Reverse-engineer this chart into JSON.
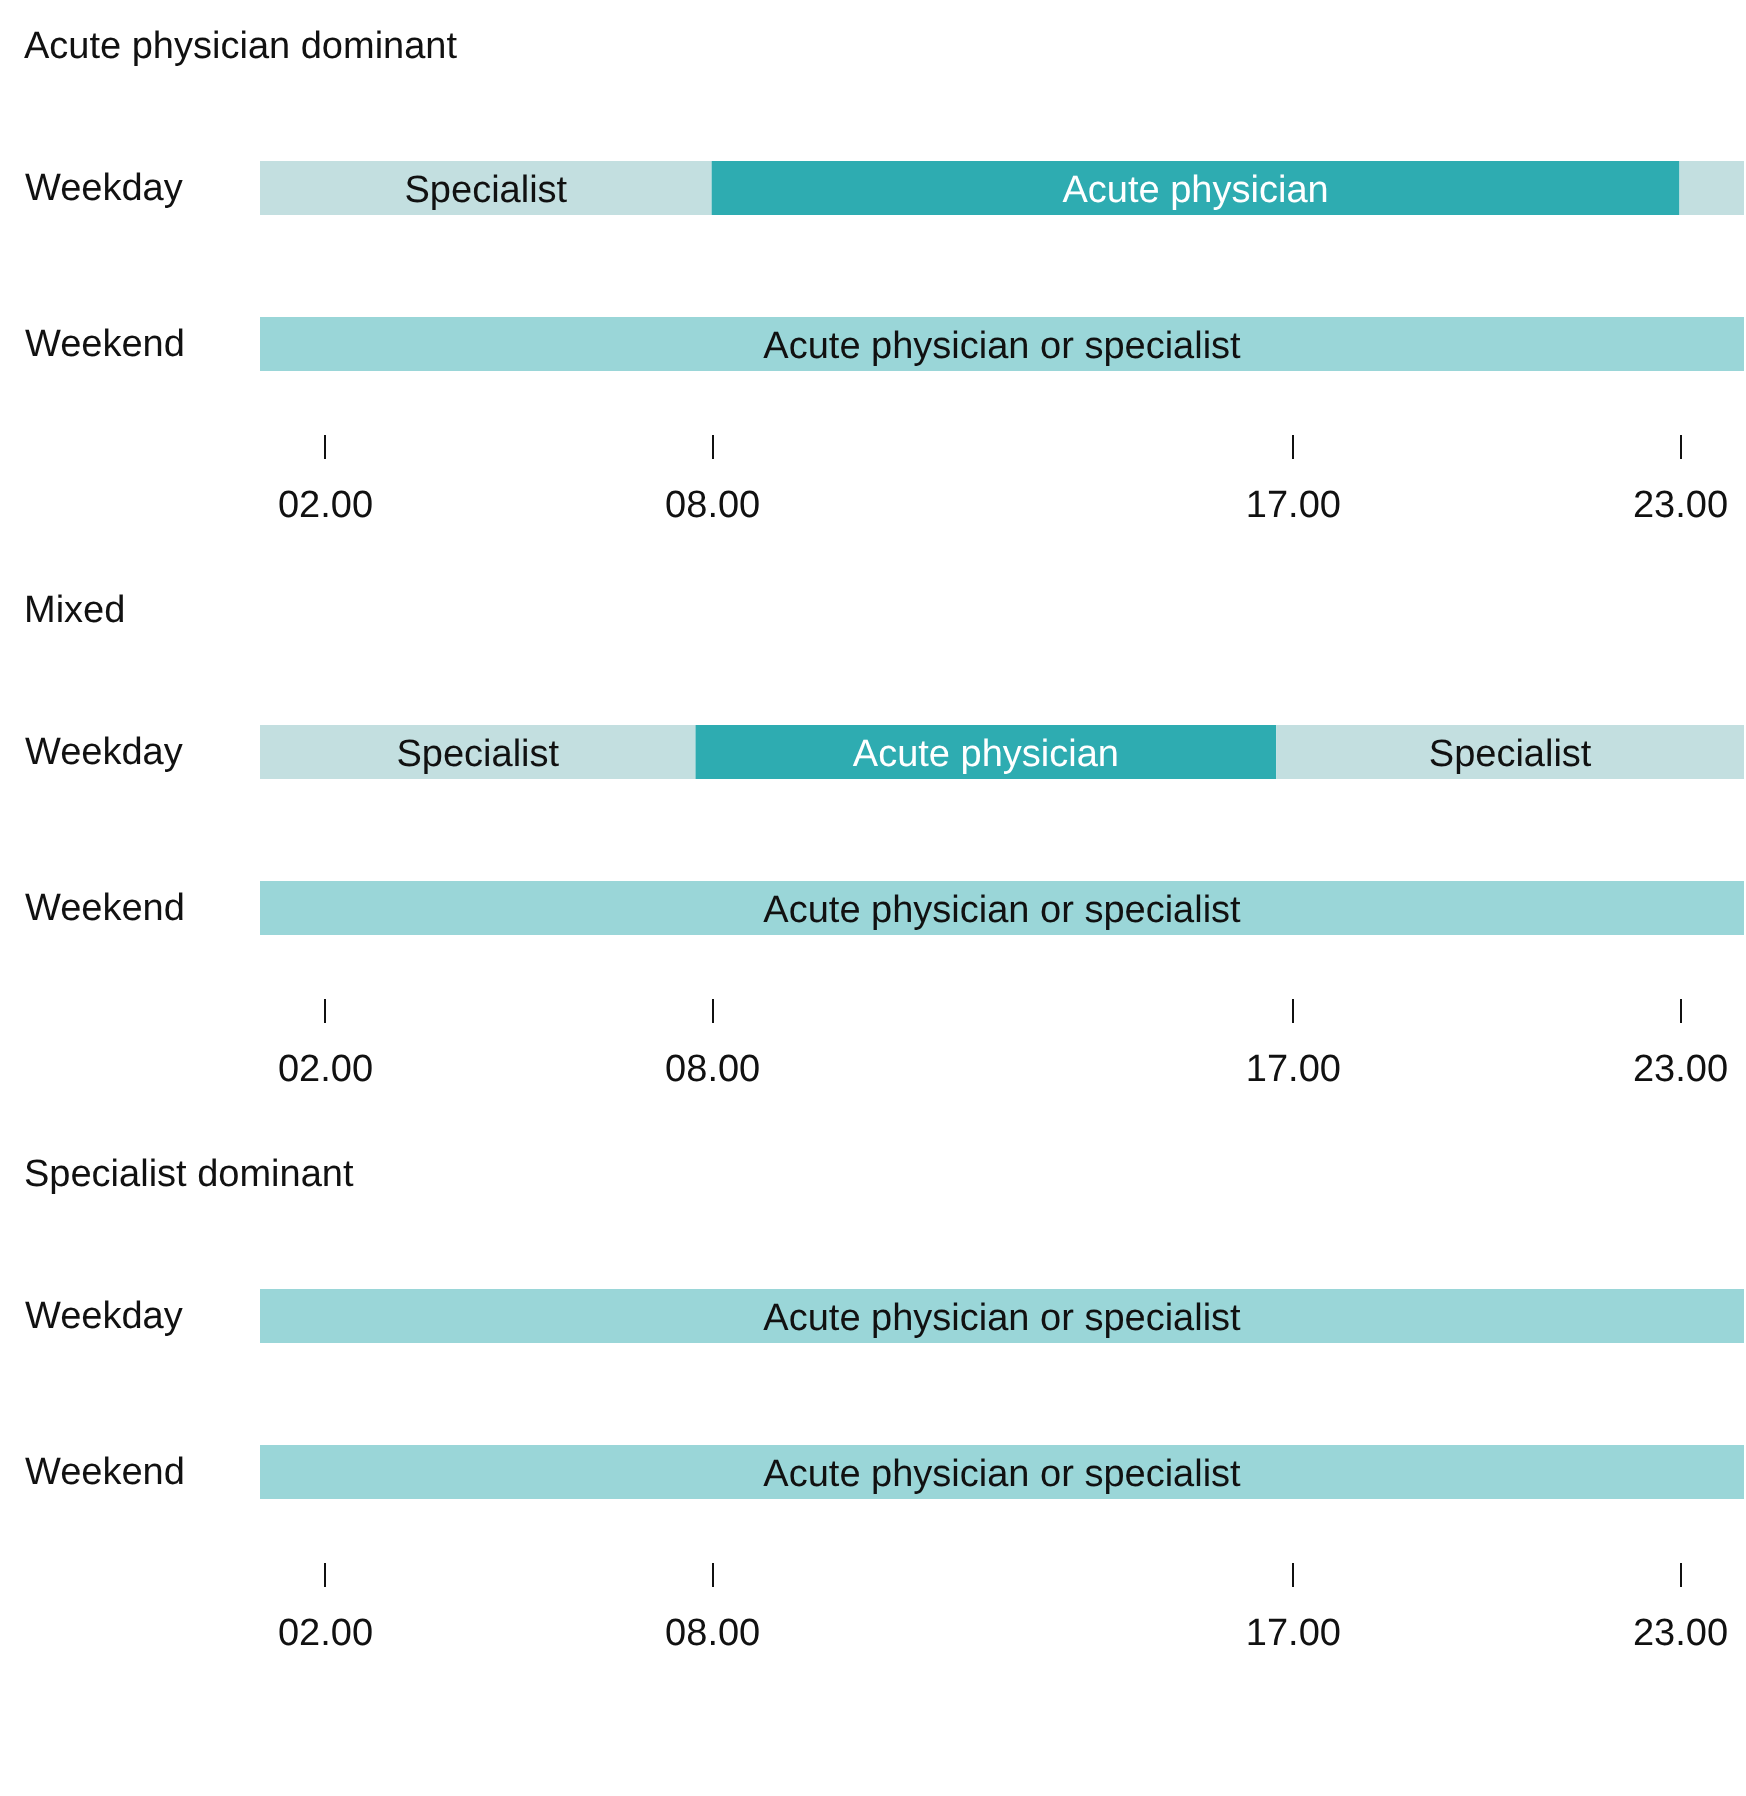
{
  "chart_data": [
    {
      "type": "bar",
      "title": "Acute physician dominant",
      "orientation": "horizontal",
      "categories": [
        "Weekday",
        "Weekend"
      ],
      "xlim": [
        1,
        24
      ],
      "xticks": [
        {
          "value": 2,
          "label": "02.00"
        },
        {
          "value": 8,
          "label": "08.00"
        },
        {
          "value": 17,
          "label": "17.00"
        },
        {
          "value": 23,
          "label": "23.00"
        }
      ],
      "series": [
        {
          "name": "Specialist",
          "color": "#c3dfe0",
          "base": [
            1,
            null
          ],
          "values": [
            7,
            null
          ]
        },
        {
          "name": "Acute physician",
          "color": "#2eacb1",
          "base": [
            8,
            null
          ],
          "values": [
            15,
            null
          ]
        },
        {
          "color": "#c3dfe0",
          "base": [
            23,
            null
          ],
          "values": [
            1,
            null
          ]
        },
        {
          "name": "Acute physician or specialist",
          "color": "#9ad6d8",
          "base": [
            null,
            1
          ],
          "values": [
            null,
            23
          ]
        }
      ]
    },
    {
      "type": "bar",
      "title": "Mixed",
      "orientation": "horizontal",
      "categories": [
        "Weekday",
        "Weekend"
      ],
      "xlim": [
        1,
        24
      ],
      "xticks": [
        {
          "value": 2,
          "label": "02.00"
        },
        {
          "value": 8,
          "label": "08.00"
        },
        {
          "value": 17,
          "label": "17.00"
        },
        {
          "value": 23,
          "label": "23.00"
        }
      ],
      "series": [
        {
          "name": "Specialist",
          "color": "#c3dfe0",
          "base": [
            1,
            null
          ],
          "values": [
            6.75,
            null
          ]
        },
        {
          "name": "Acute physician",
          "color": "#2eacb1",
          "base": [
            7.75,
            null
          ],
          "values": [
            9,
            null
          ]
        },
        {
          "name": "Specialist",
          "color": "#c3dfe0",
          "base": [
            16.75,
            null
          ],
          "values": [
            7.25,
            null
          ]
        },
        {
          "name": "Acute physician or specialist",
          "color": "#9ad6d8",
          "base": [
            null,
            1
          ],
          "values": [
            null,
            23
          ]
        }
      ]
    },
    {
      "type": "bar",
      "title": "Specialist dominant",
      "orientation": "horizontal",
      "categories": [
        "Weekday",
        "Weekend"
      ],
      "xlim": [
        1,
        24
      ],
      "xticks": [
        {
          "value": 2,
          "label": "02.00"
        },
        {
          "value": 8,
          "label": "08.00"
        },
        {
          "value": 17,
          "label": "17.00"
        },
        {
          "value": 23,
          "label": "23.00"
        }
      ],
      "series": [
        {
          "name": "Acute physician or specialist",
          "color": "#9ad6d8",
          "base": [
            1,
            null
          ],
          "values": [
            23,
            null
          ]
        },
        {
          "name": "Acute physician or specialist",
          "color": "#9ad6d8",
          "base": [
            null,
            1
          ],
          "values": [
            null,
            23
          ]
        }
      ]
    }
  ]
}
